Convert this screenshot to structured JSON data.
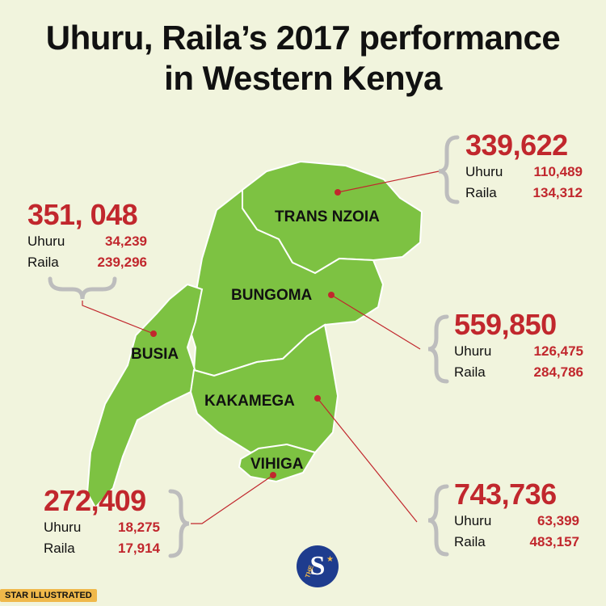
{
  "title": {
    "line1": "Uhuru, Raila’s 2017 performance",
    "line2": "in Western Kenya"
  },
  "counties": [
    {
      "id": "trans-nzoia",
      "name": "TRANS NZOIA",
      "total": "339,622",
      "uhuru": "110,489",
      "raila": "134,312"
    },
    {
      "id": "busia",
      "name": "BUSIA",
      "total": "351, 048",
      "uhuru": "34,239",
      "raila": "239,296"
    },
    {
      "id": "bungoma",
      "name": "BUNGOMA",
      "total": "559,850",
      "uhuru": "126,475",
      "raila": "284,786"
    },
    {
      "id": "kakamega",
      "name": "KAKAMEGA",
      "total": "743,736",
      "uhuru": "63,399",
      "raila": "483,157"
    },
    {
      "id": "vihiga",
      "name": "VIHIGA",
      "total": "272,409",
      "uhuru": "18,275",
      "raila": "17,914"
    }
  ],
  "candidates": {
    "uhuru": "Uhuru",
    "raila": "Raila"
  },
  "colors": {
    "map_fill": "#7dc242",
    "border": "#ffffff",
    "accent": "#c1272d",
    "background": "#f1f4dd"
  },
  "credit": "STAR ILLUSTRATED",
  "logo": {
    "letter": "S",
    "small": "THE"
  }
}
